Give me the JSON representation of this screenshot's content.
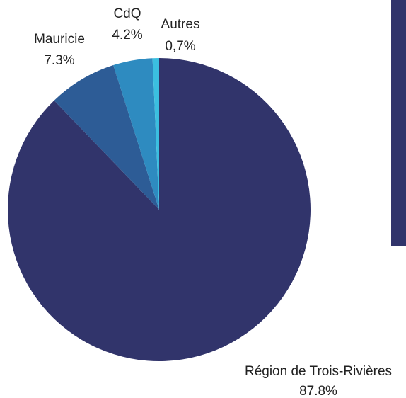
{
  "chart_data": {
    "type": "pie",
    "categories": [
      "Région de Trois-Rivières",
      "Mauricie",
      "CdQ",
      "Autres"
    ],
    "values": [
      87.8,
      7.3,
      4.2,
      0.7
    ],
    "value_labels": [
      "87.8%",
      "7.3%",
      "4.2%",
      "0,7%"
    ],
    "colors": [
      "#31346b",
      "#2d5c96",
      "#2e8bc0",
      "#3bbfe0"
    ]
  }
}
